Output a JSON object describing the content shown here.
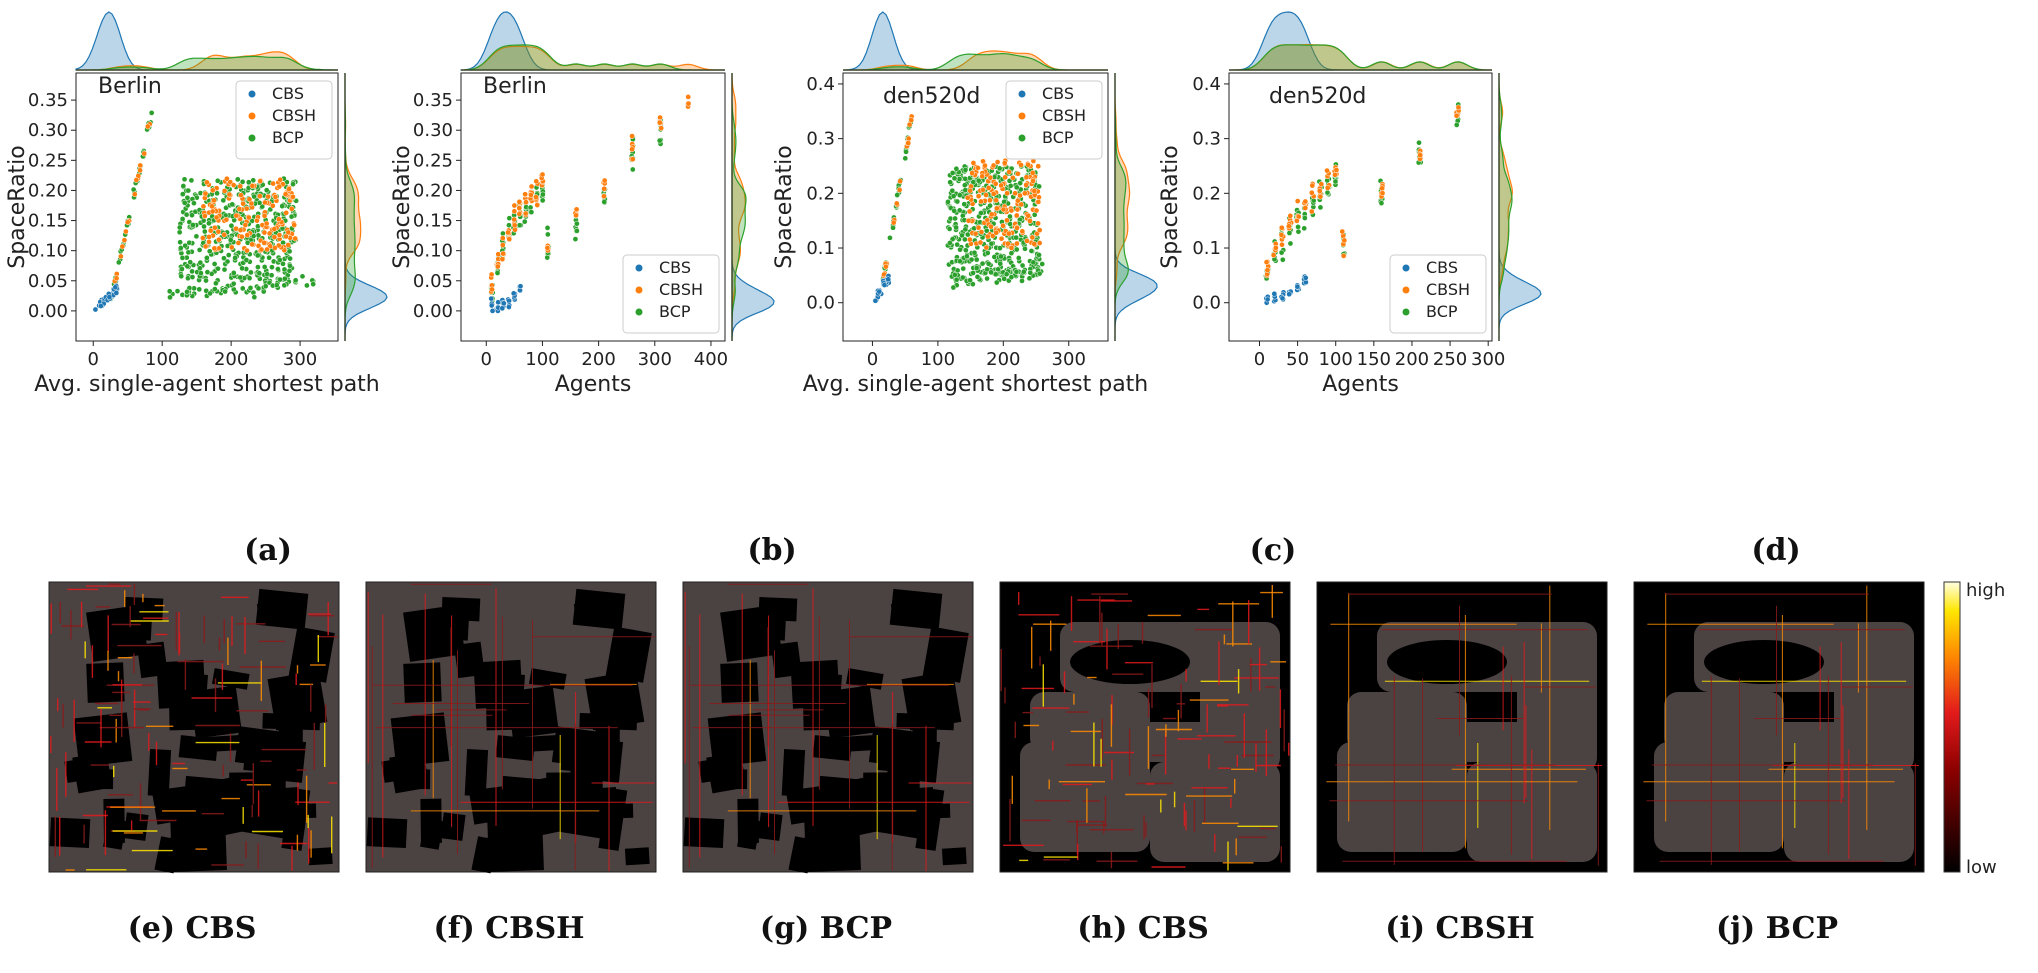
{
  "colors": {
    "CBS": "#1f77b4",
    "CBSH": "#ff7f0e",
    "BCP": "#2ca02c"
  },
  "chart_data": [
    {
      "type": "scatter",
      "panel": "a",
      "caption": "(a)",
      "title": "Berlin",
      "xlabel": "Avg. single-agent shortest path",
      "ylabel": "SpaceRatio",
      "xlim": [
        -25,
        355
      ],
      "ylim": [
        -0.05,
        0.395
      ],
      "xticks": [
        0,
        100,
        200,
        300
      ],
      "yticks": [
        0.0,
        0.05,
        0.1,
        0.15,
        0.2,
        0.25,
        0.3,
        0.35
      ],
      "legend": {
        "position": "top-right",
        "entries": [
          "CBS",
          "CBSH",
          "BCP"
        ]
      },
      "kind": "path"
    },
    {
      "type": "scatter",
      "panel": "b",
      "caption": "(b)",
      "title": "Berlin",
      "xlabel": "Agents",
      "ylabel": "SpaceRatio",
      "xlim": [
        -45,
        425
      ],
      "ylim": [
        -0.05,
        0.395
      ],
      "xticks": [
        0,
        100,
        200,
        300,
        400
      ],
      "yticks": [
        0.0,
        0.05,
        0.1,
        0.15,
        0.2,
        0.25,
        0.3,
        0.35
      ],
      "legend": {
        "position": "bottom-right",
        "entries": [
          "CBS",
          "CBSH",
          "BCP"
        ]
      },
      "kind": "agents",
      "agent_levels": [
        10,
        20,
        30,
        40,
        50,
        60,
        70,
        80,
        90,
        100,
        110,
        160,
        210,
        260,
        310,
        360
      ],
      "bcp_means": [
        0.035,
        0.075,
        0.1,
        0.125,
        0.145,
        0.16,
        0.17,
        0.18,
        0.19,
        0.2,
        0.1,
        0.14,
        0.2,
        0.26,
        0.29,
        null
      ],
      "cbsh_means": [
        0.04,
        0.08,
        0.105,
        0.13,
        0.15,
        0.165,
        0.18,
        0.19,
        0.2,
        0.215,
        0.1,
        0.16,
        0.21,
        0.27,
        0.31,
        0.34
      ],
      "cbs_means": [
        0.005,
        0.008,
        0.012,
        0.015,
        0.025,
        0.038,
        null,
        null,
        null,
        null,
        null,
        null,
        null,
        null,
        null,
        null
      ]
    },
    {
      "type": "scatter",
      "panel": "c",
      "caption": "(c)",
      "title": "den520d",
      "xlabel": "Avg. single-agent shortest path",
      "ylabel": "SpaceRatio",
      "xlim": [
        -45,
        360
      ],
      "ylim": [
        -0.07,
        0.42
      ],
      "xticks": [
        0,
        100,
        200,
        300
      ],
      "yticks": [
        0.0,
        0.1,
        0.2,
        0.3,
        0.4
      ],
      "legend": {
        "position": "top-right",
        "entries": [
          "CBS",
          "CBSH",
          "BCP"
        ]
      },
      "kind": "path"
    },
    {
      "type": "scatter",
      "panel": "d",
      "caption": "(d)",
      "title": "den520d",
      "xlabel": "Agents",
      "ylabel": "SpaceRatio",
      "xlim": [
        -40,
        305
      ],
      "ylim": [
        -0.07,
        0.42
      ],
      "xticks": [
        0,
        50,
        100,
        150,
        200,
        250,
        300
      ],
      "yticks": [
        0.0,
        0.1,
        0.2,
        0.3,
        0.4
      ],
      "legend": {
        "position": "bottom-right",
        "entries": [
          "CBS",
          "CBSH",
          "BCP"
        ]
      },
      "kind": "agents",
      "agent_levels": [
        10,
        20,
        30,
        40,
        50,
        60,
        70,
        80,
        90,
        100,
        110,
        160,
        210,
        260
      ],
      "bcp_means": [
        0.05,
        0.085,
        0.11,
        0.135,
        0.155,
        0.17,
        0.185,
        0.2,
        0.215,
        0.23,
        0.11,
        0.195,
        0.27,
        0.34
      ],
      "cbsh_means": [
        0.06,
        0.095,
        0.12,
        0.145,
        0.165,
        0.18,
        0.2,
        0.215,
        0.23,
        0.245,
        0.115,
        0.2,
        0.275,
        0.345
      ],
      "cbs_means": [
        0.003,
        0.008,
        0.012,
        0.018,
        0.025,
        0.04,
        null,
        null,
        null,
        null,
        null,
        null,
        null,
        null
      ]
    }
  ],
  "heatmaps": [
    {
      "id": "e",
      "caption": "(e) CBS",
      "map": "berlin",
      "algo": "CBS"
    },
    {
      "id": "f",
      "caption": "(f) CBSH",
      "map": "berlin",
      "algo": "CBSH"
    },
    {
      "id": "g",
      "caption": "(g) BCP",
      "map": "berlin",
      "algo": "BCP"
    },
    {
      "id": "h",
      "caption": "(h) CBS",
      "map": "den520d",
      "algo": "CBS"
    },
    {
      "id": "i",
      "caption": "(i) CBSH",
      "map": "den520d",
      "algo": "CBSH"
    },
    {
      "id": "j",
      "caption": "(j) BCP",
      "map": "den520d",
      "algo": "BCP"
    }
  ],
  "colorbar": {
    "high": "high",
    "low": "low"
  }
}
